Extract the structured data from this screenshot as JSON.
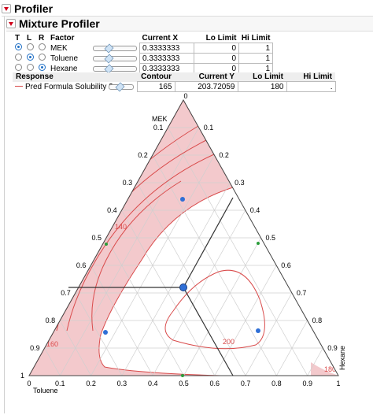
{
  "outline": {
    "profiler_title": "Profiler",
    "mixture_title": "Mixture Profiler"
  },
  "factors": {
    "headers": {
      "t": "T",
      "l": "L",
      "r": "R",
      "factor": "Factor",
      "current_x": "Current X",
      "lo": "Lo Limit",
      "hi": "Hi Limit"
    },
    "rows": [
      {
        "name": "MEK",
        "current_x": "0.3333333",
        "lo": "0",
        "hi": "1",
        "t_on": true,
        "l_on": false,
        "r_on": false
      },
      {
        "name": "Toluene",
        "current_x": "0.3333333",
        "lo": "0",
        "hi": "1",
        "t_on": false,
        "l_on": true,
        "r_on": false
      },
      {
        "name": "Hexane",
        "current_x": "0.3333333",
        "lo": "0",
        "hi": "1",
        "t_on": false,
        "l_on": false,
        "r_on": true
      }
    ]
  },
  "response": {
    "headers": {
      "response": "Response",
      "contour": "Contour",
      "current_y": "Current Y",
      "lo": "Lo Limit",
      "hi": "Hi Limit"
    },
    "row": {
      "name": "Pred Formula Solubility 2",
      "contour": "165",
      "current_y": "203.72059",
      "lo": "180",
      "hi": "."
    }
  },
  "ternary": {
    "vertex_labels": {
      "top": "MEK",
      "left": "Toluene",
      "right": "Hexane"
    },
    "left_ticks": [
      "0.1",
      "0.2",
      "0.3",
      "0.4",
      "0.5",
      "0.6",
      "0.7",
      "0.8",
      "0.9",
      "1"
    ],
    "right_ticks": [
      "0",
      "0.1",
      "0.2",
      "0.3",
      "0.4",
      "0.5",
      "0.6",
      "0.7",
      "0.8",
      "0.9"
    ],
    "bottom_ticks": [
      "0",
      "0.1",
      "0.2",
      "0.3",
      "0.4",
      "0.5",
      "0.6",
      "0.7",
      "0.8",
      "0.9",
      "1"
    ],
    "top_tick": "0",
    "contour_labels": [
      "140",
      "160",
      "200",
      "180"
    ],
    "colors": {
      "shade": "#f3c9cc",
      "contour": "#d94b4b",
      "grid": "#cfcfcf",
      "point": "#2f6fd6",
      "mid": "#2a9d3a"
    }
  }
}
